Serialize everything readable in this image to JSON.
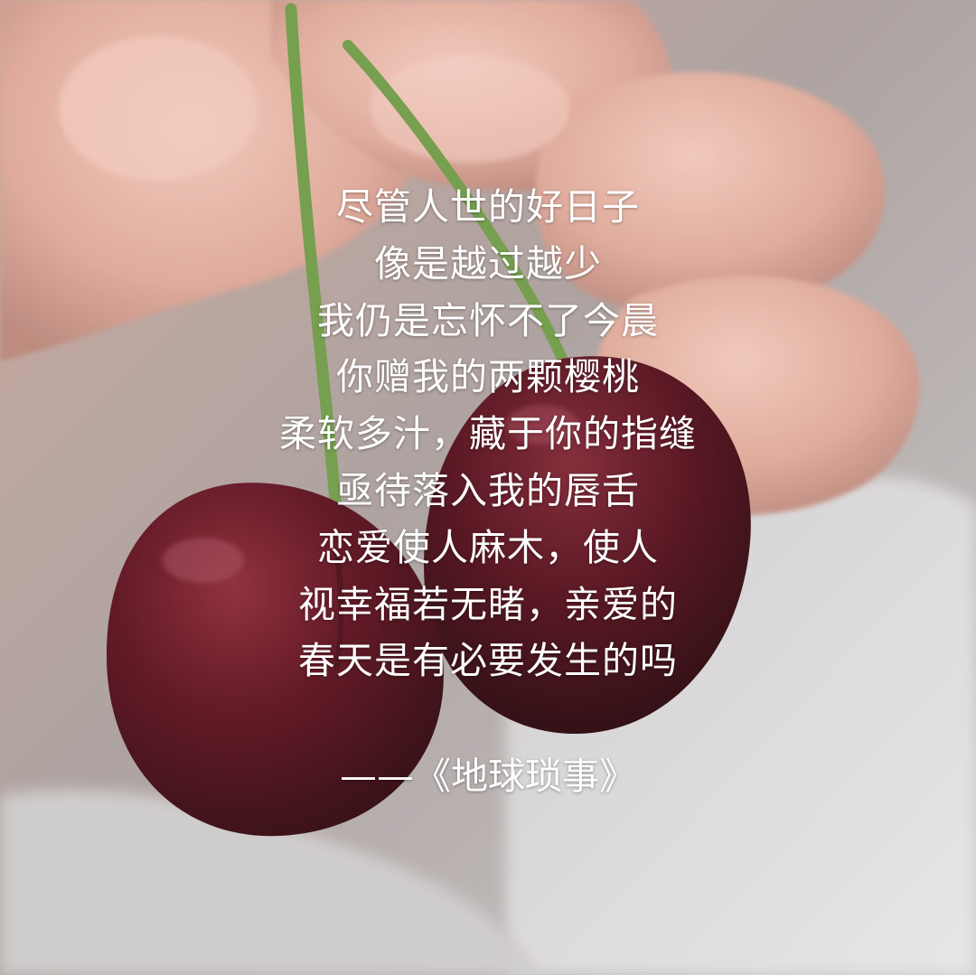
{
  "poem": {
    "lines": [
      "尽管人世的好日子",
      "像是越过越少",
      "我仍是忘怀不了今晨",
      "你赠我的两颗樱桃",
      "柔软多汁，藏于你的指缝",
      "亟待落入我的唇舌",
      "恋爱使人麻木，使人",
      "视幸福若无睹，亲爱的",
      "春天是有必要发生的吗"
    ],
    "attribution": "——《地球琐事》"
  },
  "colors": {
    "text": "#ffffff",
    "cherry": "#5a0f1a",
    "stem": "#6e9a45",
    "skin": "#e2b2a4",
    "background": "#b5a8a4"
  }
}
